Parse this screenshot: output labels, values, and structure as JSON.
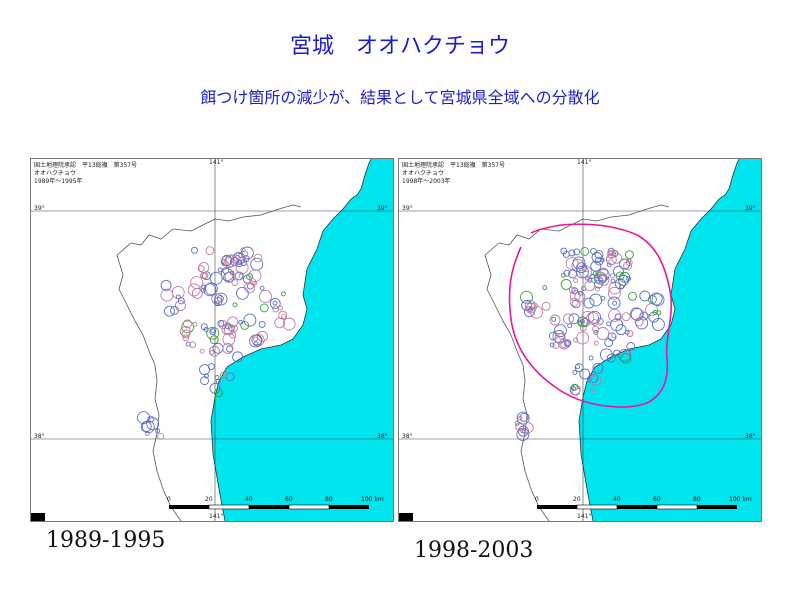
{
  "title": "宮城　オオハクチョウ",
  "subtitle": "餌つけ箇所の減少が、結果として宮城県全域への分散化",
  "colors": {
    "sea": "#00e4ee",
    "land": "#ffffff",
    "title": "#1c1cd0",
    "marker_blue": "#5a6fc8",
    "marker_pink": "#c07c9e",
    "marker_green": "#3aa030",
    "annotation": "#e8189a"
  },
  "panels": [
    {
      "header_line1": "国土地理院承認　平13総複　第357号",
      "header_line2": "オオハクチョウ",
      "header_line3": "1989年～1995年",
      "lon_label_top": "141°",
      "lon_label_bottom": "141°",
      "lat_label_39_left": "39°",
      "lat_label_39_right": "39°",
      "lat_label_38_left": "38°",
      "lat_label_38_right": "38°",
      "scale_ticks": [
        "0",
        "20",
        "40",
        "60",
        "80",
        "100 km"
      ],
      "caption": "1989-1995"
    },
    {
      "header_line1": "国土地理院承認　平13総複　第357号",
      "header_line2": "オオハクチョウ",
      "header_line3": "1998年～2003年",
      "lon_label_top": "141°",
      "lon_label_bottom": "141°",
      "lat_label_39_left": "39°",
      "lat_label_39_right": "39°",
      "lat_label_38_left": "38°",
      "lat_label_38_right": "38°",
      "scale_ticks": [
        "0",
        "20",
        "40",
        "60",
        "80",
        "100 km"
      ],
      "caption": "1998-2003"
    }
  ]
}
